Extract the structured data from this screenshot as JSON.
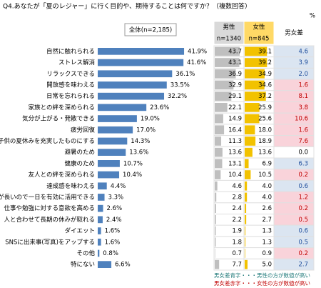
{
  "chart_data": {
    "type": "bar",
    "title": "Q4.あなたが「夏のレジャー」に行く目的や、期待することは何ですか？（複数回答）",
    "unit": "%",
    "categories": [
      "自然に触れられる",
      "ストレス解消",
      "リラックスできる",
      "開放感を味わえる",
      "日常を忘れられる",
      "家族との絆を深められる",
      "気分が上がる・発散できる",
      "疲労回復",
      "子供の夏休みを充実したものにする",
      "避暑のため",
      "健康のため",
      "友人との絆を深められる",
      "達成感を味わえる",
      "日が長いので一日を有効に活用できる",
      "仕事や勉強に対する意欲を高める",
      "人と合わせて長期の休みが取れる",
      "ダイエット",
      "SNSに出来事(写真)をアップする",
      "その他",
      "特にない"
    ],
    "xlim": [
      0,
      45
    ],
    "series": [
      {
        "name": "全体(n=2,185)",
        "color": "#4f81bd",
        "values": [
          41.9,
          41.6,
          36.1,
          33.5,
          32.2,
          23.6,
          19.0,
          17.0,
          14.3,
          13.6,
          10.7,
          10.4,
          4.4,
          3.3,
          2.6,
          2.4,
          1.6,
          1.6,
          0.8,
          6.6
        ],
        "value_labels": [
          "41.9%",
          "41.6%",
          "36.1%",
          "33.5%",
          "32.2%",
          "23.6%",
          "19.0%",
          "17.0%",
          "14.3%",
          "13.6%",
          "10.7%",
          "10.4%",
          "4.4%",
          "3.3%",
          "2.6%",
          "2.4%",
          "1.6%",
          "1.6%",
          "0.8%",
          "6.6%"
        ]
      },
      {
        "name": "男性",
        "n_label": "n=1340",
        "color": "#bfbfbf",
        "header_color": "#d9d9d9",
        "values": [
          43.7,
          43.1,
          36.9,
          32.9,
          29.1,
          22.1,
          14.9,
          16.4,
          11.3,
          13.6,
          13.1,
          10.4,
          4.6,
          2.8,
          2.4,
          2.2,
          1.9,
          1.8,
          0.7,
          7.7
        ],
        "value_labels": [
          "43.7",
          "43.1",
          "36.9",
          "32.9",
          "29.1",
          "22.1",
          "14.9",
          "16.4",
          "11.3",
          "13.6",
          "13.1",
          "10.4",
          "4.6",
          "2.8",
          "2.4",
          "2.2",
          "1.9",
          "1.8",
          "0.7",
          "7.7"
        ]
      },
      {
        "name": "女性",
        "n_label": "n=845",
        "color": "#f2c200",
        "header_color": "#ffd966",
        "values": [
          39.1,
          39.2,
          34.9,
          34.6,
          37.2,
          25.9,
          25.6,
          18.0,
          18.9,
          13.6,
          6.9,
          10.5,
          4.0,
          4.0,
          2.6,
          2.7,
          1.3,
          1.3,
          0.9,
          5.0
        ],
        "value_labels": [
          "39.1",
          "39.2",
          "34.9",
          "34.6",
          "37.2",
          "25.9",
          "25.6",
          "18.0",
          "18.9",
          "13.6",
          "6.9",
          "10.5",
          "4.0",
          "4.0",
          "2.6",
          "2.7",
          "1.3",
          "1.3",
          "0.9",
          "5.0"
        ]
      },
      {
        "name": "男女差",
        "values": [
          4.6,
          3.9,
          2.0,
          1.6,
          8.1,
          3.8,
          10.6,
          1.6,
          7.6,
          0.0,
          6.3,
          0.2,
          0.6,
          1.2,
          0.2,
          0.5,
          0.6,
          0.5,
          0.2,
          2.7
        ],
        "value_labels": [
          "4.6",
          "3.9",
          "2.0",
          "1.6",
          "8.1",
          "3.8",
          "10.6",
          "1.6",
          "7.6",
          "0.0",
          "6.3",
          "0.2",
          "0.6",
          "1.2",
          "0.2",
          "0.5",
          "0.6",
          "0.5",
          "0.2",
          "2.7"
        ],
        "colors": [
          "#dbe5f1",
          "#dbe5f1",
          "#dbe5f1",
          "#f9d3da",
          "#f9d3da",
          "#f9d3da",
          "#f9d3da",
          "#f9d3da",
          "#f9d3da",
          "#ffffff",
          "#dbe5f1",
          "#f9d3da",
          "#dbe5f1",
          "#f9d3da",
          "#f9d3da",
          "#f9d3da",
          "#dbe5f1",
          "#dbe5f1",
          "#f9d3da",
          "#dbe5f1"
        ],
        "text_colors": [
          "#1f4e9c",
          "#1f4e9c",
          "#1f4e9c",
          "#c00000",
          "#c00000",
          "#c00000",
          "#c00000",
          "#c00000",
          "#c00000",
          "#000000",
          "#1f4e9c",
          "#c00000",
          "#1f4e9c",
          "#c00000",
          "#c00000",
          "#c00000",
          "#1f4e9c",
          "#1f4e9c",
          "#c00000",
          "#1f4e9c"
        ]
      }
    ],
    "notes": [
      {
        "text": "男女差青字・・・男性の方が数値が高い",
        "color": "#1f7a7a"
      },
      {
        "text": "男女差赤字・・・女性の方が数値が高い",
        "color": "#c00000"
      }
    ]
  }
}
